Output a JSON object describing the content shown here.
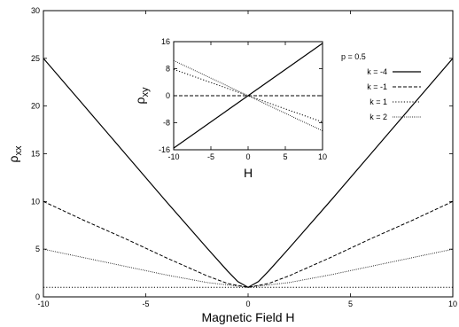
{
  "chart_data": [
    {
      "id": "main",
      "type": "line",
      "xlabel": "Magnetic Field H",
      "ylabel": "ρ",
      "ylabel_subscript": "xx",
      "xlim": [
        -10,
        10
      ],
      "ylim": [
        0,
        30
      ],
      "xticks": [
        "-10",
        "-5",
        "0",
        "5",
        "10"
      ],
      "yticks": [
        "0",
        "5",
        "10",
        "15",
        "20",
        "25",
        "30"
      ],
      "series": [
        {
          "name": "k = -4",
          "style": "solid",
          "x": [
            -10,
            -8,
            -6,
            -4,
            -2,
            -1,
            -0.5,
            0,
            0.5,
            1,
            2,
            4,
            6,
            8,
            10
          ],
          "values": [
            25,
            20,
            15,
            10,
            5.1,
            2.7,
            1.6,
            1.0,
            1.6,
            2.7,
            5.1,
            10,
            15,
            20,
            25
          ]
        },
        {
          "name": "k = -1",
          "style": "dashed",
          "x": [
            -10,
            -8,
            -6,
            -4,
            -2,
            -1,
            0,
            1,
            2,
            4,
            6,
            8,
            10
          ],
          "values": [
            10,
            8,
            6.1,
            4.1,
            2.2,
            1.4,
            1.0,
            1.4,
            2.2,
            4.1,
            6.1,
            8,
            10
          ]
        },
        {
          "name": "k = 1",
          "style": "dotted",
          "x": [
            -10,
            10
          ],
          "values": [
            1,
            1
          ]
        },
        {
          "name": "k = 2",
          "style": "dotted-fine",
          "x": [
            -10,
            -8,
            -6,
            -4,
            -2,
            0,
            2,
            4,
            6,
            8,
            10
          ],
          "values": [
            5,
            4.1,
            3.2,
            2.3,
            1.5,
            1.0,
            1.5,
            2.3,
            3.2,
            4.1,
            5
          ]
        }
      ],
      "legend": {
        "title": "p = 0.5",
        "placement": "top-right",
        "entries": [
          "k = -4",
          "k = -1",
          "k = 1",
          "k = 2"
        ]
      }
    },
    {
      "id": "inset",
      "type": "line",
      "xlabel": "H",
      "ylabel": "ρ",
      "ylabel_subscript": "xy",
      "xlim": [
        -10,
        10
      ],
      "ylim": [
        -16,
        16
      ],
      "xticks": [
        "-10",
        "-5",
        "0",
        "5",
        "10"
      ],
      "yticks": [
        "-16",
        "-8",
        "0",
        "8",
        "16"
      ],
      "series": [
        {
          "name": "k = -4",
          "style": "solid",
          "x": [
            -10,
            10
          ],
          "values": [
            -15.5,
            15.5
          ]
        },
        {
          "name": "k = -1",
          "style": "dashed",
          "x": [
            -10,
            10
          ],
          "values": [
            0,
            0
          ]
        },
        {
          "name": "k = 1",
          "style": "dotted",
          "x": [
            -10,
            10
          ],
          "values": [
            7.8,
            -7.8
          ]
        },
        {
          "name": "k = 2",
          "style": "dotted-fine",
          "x": [
            -10,
            10
          ],
          "values": [
            10.4,
            -10.4
          ]
        }
      ]
    }
  ]
}
